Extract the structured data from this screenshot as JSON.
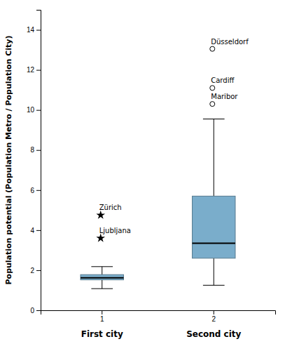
{
  "chart_data": {
    "type": "box",
    "categories": [
      "1",
      "2"
    ],
    "boxes": [
      {
        "label": "First city",
        "whisker_low": 1.08,
        "q1": 1.52,
        "median": 1.62,
        "q3": 1.78,
        "whisker_high": 2.18,
        "outliers": [
          4.75,
          3.6
        ],
        "outlier_labels": [
          "Zürich",
          "Ljubljana"
        ],
        "marker": "star"
      },
      {
        "label": "Second city",
        "whisker_low": 1.25,
        "q1": 2.6,
        "median": 3.35,
        "q3": 5.7,
        "whisker_high": 9.55,
        "outliers": [
          10.3,
          11.1,
          13.05
        ],
        "outlier_labels": [
          "Maribor",
          "Cardiff",
          "Düsseldorf"
        ],
        "marker": "circle"
      }
    ],
    "ylabel": "Population potential (Population Metro / Population City)",
    "ylim": [
      0,
      15
    ],
    "yticks": [
      0,
      2,
      4,
      6,
      8,
      10,
      12,
      14
    ],
    "color": "#7aadcb",
    "grid": false
  }
}
